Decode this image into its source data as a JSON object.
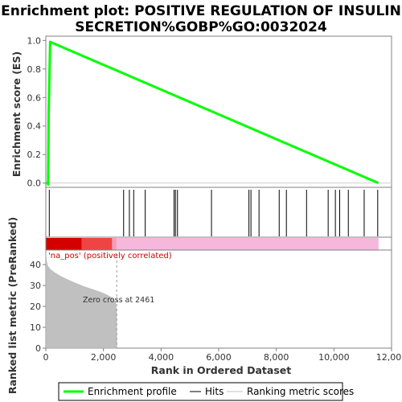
{
  "chart_data": {
    "type": "line",
    "title_lines": [
      "Enrichment plot: POSITIVE REGULATION OF INSULIN",
      "SECRETION%GOBP%GO:0032024"
    ],
    "top_panel": {
      "ylabel": "Enrichment score (ES)",
      "ylim": [
        -0.03,
        1.03
      ],
      "yticks": [
        0.0,
        0.2,
        0.4,
        0.6,
        0.8,
        1.0
      ],
      "ytick_labels": [
        "0.0",
        "0.2",
        "0.4",
        "0.6",
        "0.8",
        "1.0"
      ],
      "es_curve": {
        "name": "Enrichment profile",
        "color": "#00ff00",
        "x": [
          0,
          60,
          80,
          100,
          150,
          11540
        ],
        "y": [
          0.0,
          0.0,
          -0.01,
          0.5,
          0.99,
          0.0
        ]
      }
    },
    "hits": [
      120,
      2700,
      2900,
      3050,
      3450,
      4450,
      4500,
      4570,
      5750,
      7050,
      7120,
      7400,
      8100,
      8350,
      9050,
      9800,
      10050,
      10200,
      10500,
      11050,
      11520
    ],
    "color_bar": {
      "segments": [
        {
          "from": 0,
          "to": 1250,
          "color": "#d40000"
        },
        {
          "from": 1250,
          "to": 2300,
          "color": "#ee4444"
        },
        {
          "from": 2300,
          "to": 2461,
          "color": "#f3a0b8"
        },
        {
          "from": 2461,
          "to": 11550,
          "color": "#f5b8dc"
        }
      ],
      "label": "'na_pos' (positively correlated)"
    },
    "bottom_panel": {
      "ylabel": "Ranked list metric (PreRanked)",
      "ylim": [
        0,
        47
      ],
      "yticks": [
        0,
        10,
        20,
        30,
        40
      ],
      "ytick_labels": [
        "0",
        "10",
        "20",
        "30",
        "40"
      ],
      "metric": {
        "x": [
          0,
          20,
          60,
          150,
          300,
          500,
          800,
          1000,
          1300,
          1600,
          1900,
          2100,
          2250,
          2350,
          2420,
          2455,
          2461
        ],
        "y": [
          46,
          42,
          39.5,
          37.8,
          36.2,
          34.5,
          32.5,
          31.3,
          29.6,
          28.2,
          26.8,
          25.6,
          24.5,
          23.6,
          21.5,
          17.0,
          0
        ]
      },
      "zero_cross": 2461,
      "zero_cross_label": "Zero cross at 2461"
    },
    "x_axis": {
      "xlabel": "Rank in Ordered Dataset",
      "xlim": [
        0,
        12000
      ],
      "xticks": [
        0,
        2000,
        4000,
        6000,
        8000,
        10000,
        12000
      ],
      "xtick_labels": [
        "0",
        "2,000",
        "4,000",
        "6,000",
        "8,000",
        "10,000",
        "12,000"
      ]
    },
    "legend": {
      "placement": "bottom",
      "items": [
        {
          "label": "Enrichment profile",
          "color": "#00ff00"
        },
        {
          "label": "Hits",
          "color": "#000000"
        },
        {
          "label": "Ranking metric scores",
          "color": "#c0c0c0"
        }
      ]
    }
  }
}
